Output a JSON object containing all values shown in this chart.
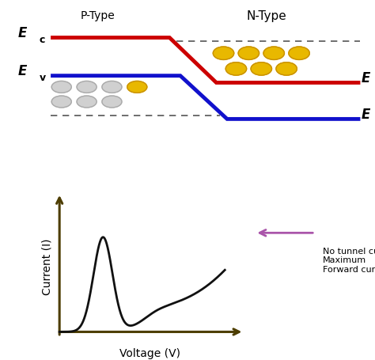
{
  "bg_color": "#ffffff",
  "red_color": "#cc0000",
  "blue_color": "#1111cc",
  "gold_color": "#e8b800",
  "gold_edge": "#c89000",
  "gray_color": "#d0d0d0",
  "gray_edge": "#aaaaaa",
  "arrow_color": "#aa55aa",
  "axis_color": "#4d3d00",
  "curve_color": "#111111",
  "p_type_label": "P-Type",
  "n_type_label": "N-Type",
  "xlabel": "Voltage (V)",
  "ylabel": "Current (I)",
  "annotation": "No tunnel current\nMaximum\nForward current"
}
